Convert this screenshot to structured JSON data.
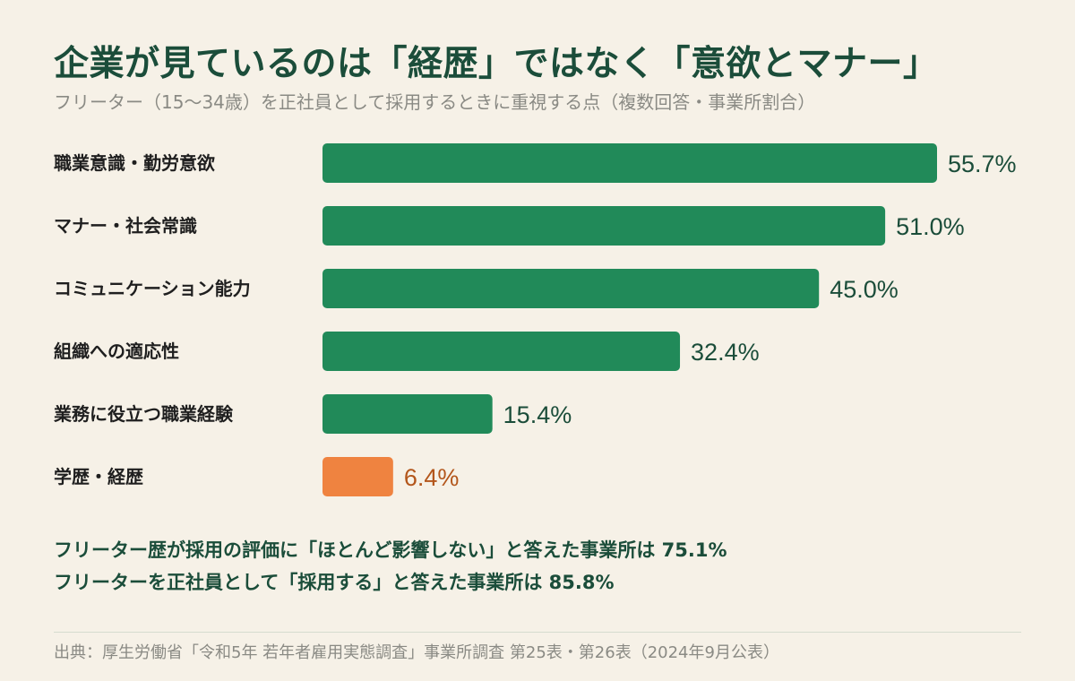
{
  "header": {
    "title": "企業が見ているのは「経歴」ではなく「意欲とマナー」",
    "subtitle": "フリーター（15〜34歳）を正社員として採用するときに重視する点（複数回答・事業所割合）"
  },
  "chart_data": {
    "type": "bar",
    "orientation": "horizontal",
    "categories": [
      "職業意識・勤労意欲",
      "マナー・社会常識",
      "コミュニケーション能力",
      "組織への適応性",
      "業務に役立つ職業経験",
      "学歴・経歴"
    ],
    "values": [
      55.7,
      51.0,
      45.0,
      32.4,
      15.4,
      6.4
    ],
    "value_labels": [
      "55.7%",
      "51.0%",
      "45.0%",
      "32.4%",
      "15.4%",
      "6.4%"
    ],
    "highlight_index": 5,
    "xlim": [
      0,
      55.7
    ],
    "grid": false,
    "colors": {
      "bar": "#218a59",
      "highlight_bar": "#ef8340",
      "label": "#1b4d3a",
      "highlight_label": "#b3561b"
    }
  },
  "notes": [
    "フリーター歴が採用の評価に「ほとんど影響しない」と答えた事業所は 75.1%",
    "フリーターを正社員として「採用する」と答えた事業所は 85.8%"
  ],
  "source": "出典：厚生労働省「令和5年 若年者雇用実態調査」事業所調査 第25表・第26表（2024年9月公表）"
}
